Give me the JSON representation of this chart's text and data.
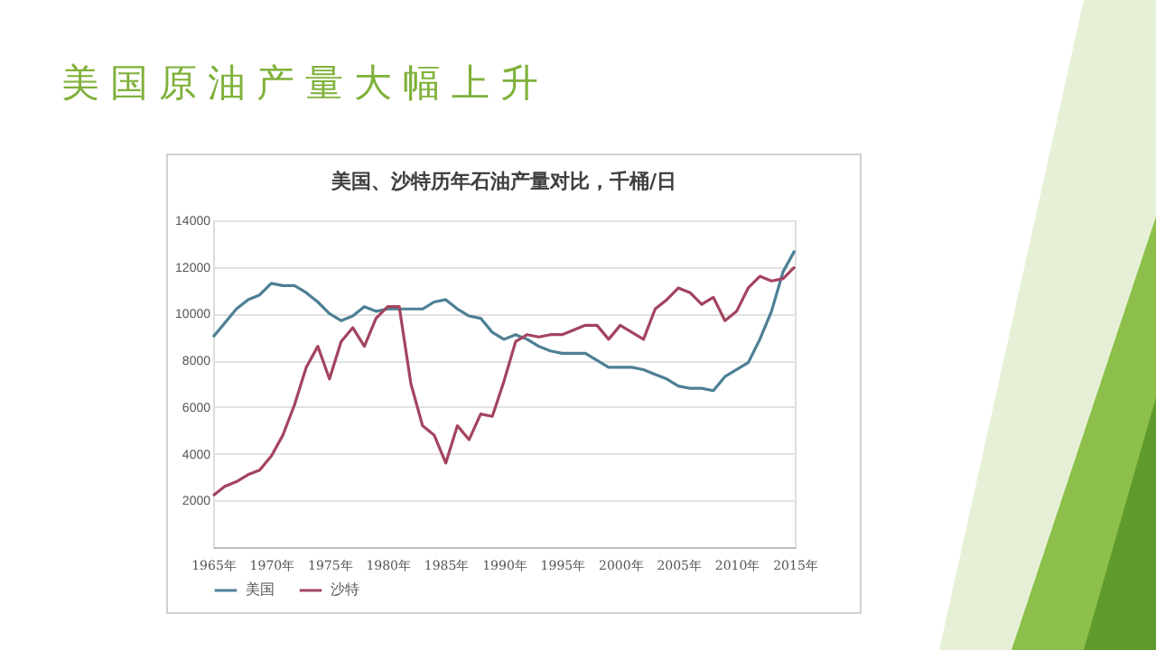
{
  "chart_data": {
    "type": "line",
    "title": "美国原油产量大幅上升",
    "subtitle": "美国、沙特历年石油产量对比，千桶/日",
    "x": [
      1965,
      1966,
      1967,
      1968,
      1969,
      1970,
      1971,
      1972,
      1973,
      1974,
      1975,
      1976,
      1977,
      1978,
      1979,
      1980,
      1981,
      1982,
      1983,
      1984,
      1985,
      1986,
      1987,
      1988,
      1989,
      1990,
      1991,
      1992,
      1993,
      1994,
      1995,
      1996,
      1997,
      1998,
      1999,
      2000,
      2001,
      2002,
      2003,
      2004,
      2005,
      2006,
      2007,
      2008,
      2009,
      2010,
      2011,
      2012,
      2013,
      2014,
      2015
    ],
    "series": [
      {
        "name": "美国",
        "color": "#4d7f95",
        "values": [
          9000,
          9600,
          10200,
          10600,
          10800,
          11300,
          11200,
          11200,
          10900,
          10500,
          10000,
          9700,
          9900,
          10300,
          10100,
          10200,
          10200,
          10200,
          10200,
          10500,
          10600,
          10200,
          9900,
          9800,
          9200,
          8900,
          9100,
          8900,
          8600,
          8400,
          8300,
          8300,
          8300,
          8000,
          7700,
          7700,
          7700,
          7600,
          7400,
          7200,
          6900,
          6800,
          6800,
          6700,
          7300,
          7600,
          7900,
          8900,
          10100,
          11800,
          12700
        ]
      },
      {
        "name": "沙特",
        "color": "#a3445f",
        "values": [
          2200,
          2600,
          2800,
          3100,
          3300,
          3900,
          4800,
          6100,
          7700,
          8600,
          7200,
          8800,
          9400,
          8600,
          9800,
          10300,
          10300,
          7000,
          5200,
          4800,
          3600,
          5200,
          4600,
          5700,
          5600,
          7100,
          8800,
          9100,
          9000,
          9100,
          9100,
          9300,
          9500,
          9500,
          8900,
          9500,
          9200,
          8900,
          10200,
          10600,
          11100,
          10900,
          10400,
          10700,
          9700,
          10100,
          11100,
          11600,
          11400,
          11500,
          12000
        ]
      }
    ],
    "xlim": [
      1965,
      2015
    ],
    "xticks": [
      {
        "value": 1965,
        "label": "1965年"
      },
      {
        "value": 1970,
        "label": "1970年"
      },
      {
        "value": 1975,
        "label": "1975年"
      },
      {
        "value": 1980,
        "label": "1980年"
      },
      {
        "value": 1985,
        "label": "1985年"
      },
      {
        "value": 1990,
        "label": "1990年"
      },
      {
        "value": 1995,
        "label": "1995年"
      },
      {
        "value": 2000,
        "label": "2000年"
      },
      {
        "value": 2005,
        "label": "2005年"
      },
      {
        "value": 2010,
        "label": "2010年"
      },
      {
        "value": 2015,
        "label": "2015年"
      }
    ],
    "ylim": [
      0,
      14000
    ],
    "yticks": [
      {
        "value": 0,
        "label": null
      },
      2000,
      4000,
      6000,
      8000,
      10000,
      12000,
      14000
    ],
    "grid": "y",
    "legend": "bottom",
    "marker": "none",
    "line_style": "solid"
  }
}
